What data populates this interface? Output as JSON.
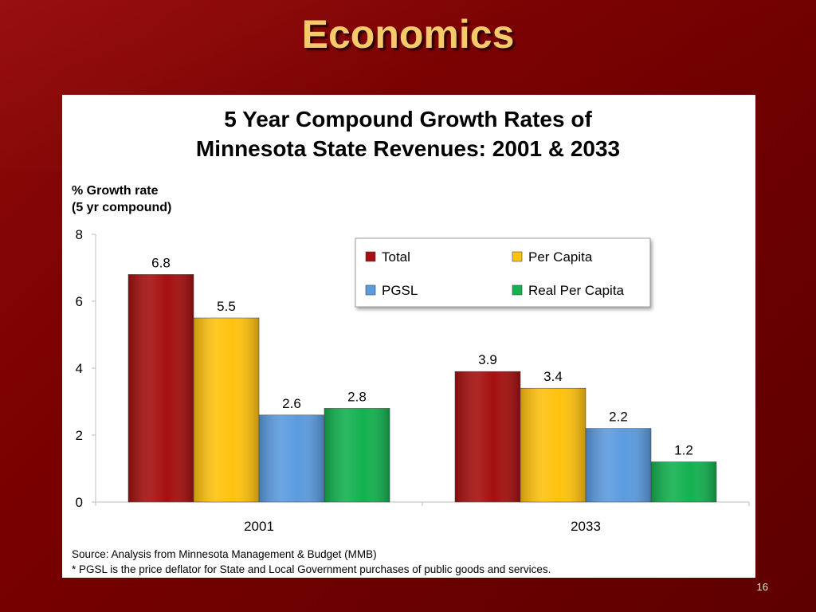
{
  "slide": {
    "title": "Economics",
    "page_number": "16"
  },
  "chart_data": {
    "type": "bar",
    "title_line1": "5 Year Compound Growth Rates of",
    "title_line2": "Minnesota State Revenues: 2001 & 2033",
    "ylabel_line1": "% Growth rate",
    "ylabel_line2": "(5 yr compound)",
    "xlabel": "",
    "categories": [
      "2001",
      "2033"
    ],
    "ylim": [
      0,
      8
    ],
    "yticks": [
      "0",
      "2",
      "4",
      "6",
      "8"
    ],
    "series": [
      {
        "name": "Total",
        "values": [
          6.8,
          3.9
        ],
        "labels": [
          "6.8",
          "3.9"
        ],
        "color": "#a50f0f"
      },
      {
        "name": "Per Capita",
        "values": [
          5.5,
          3.4
        ],
        "labels": [
          "5.5",
          "3.4"
        ],
        "color": "#ffc20e"
      },
      {
        "name": "PGSL",
        "values": [
          2.6,
          2.2
        ],
        "labels": [
          "2.6",
          "2.2"
        ],
        "color": "#5b9be0"
      },
      {
        "name": "Real Per Capita",
        "values": [
          2.8,
          1.2
        ],
        "labels": [
          "2.8",
          "1.2"
        ],
        "color": "#13b14f"
      }
    ],
    "legend_position": "top-right",
    "grid": false,
    "source_line": "Source: Analysis from Minnesota Management & Budget (MMB)",
    "footnote": "* PGSL is the price deflator for State and Local Government purchases of public goods and services."
  }
}
